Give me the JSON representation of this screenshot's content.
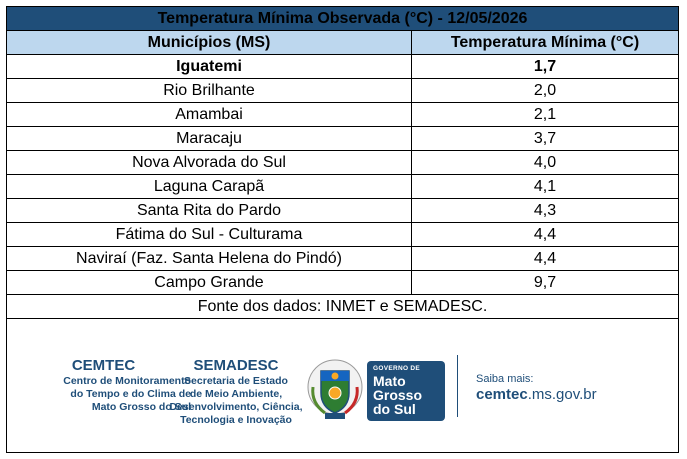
{
  "table": {
    "title": "Temperatura Mínima Observada (°C) - 12/05/2026",
    "col_municipio": "Municípios (MS)",
    "col_temperatura": "Temperatura Mínima (°C)",
    "rows": [
      {
        "municipio": "Iguatemi",
        "temperatura": "1,7"
      },
      {
        "municipio": "Rio Brilhante",
        "temperatura": "2,0"
      },
      {
        "municipio": "Amambai",
        "temperatura": "2,1"
      },
      {
        "municipio": "Maracaju",
        "temperatura": "3,7"
      },
      {
        "municipio": "Nova Alvorada do Sul",
        "temperatura": "4,0"
      },
      {
        "municipio": "Laguna Carapã",
        "temperatura": "4,1"
      },
      {
        "municipio": "Santa Rita do Pardo",
        "temperatura": "4,3"
      },
      {
        "municipio": "Fátima do Sul - Culturama",
        "temperatura": "4,4"
      },
      {
        "municipio": "Naviraí (Faz. Santa Helena do Pindó)",
        "temperatura": "4,4"
      },
      {
        "municipio": "Campo Grande",
        "temperatura": "9,7"
      }
    ],
    "source": "Fonte dos dados: INMET e SEMADESC."
  },
  "footer": {
    "cemtec": {
      "name": "CEMTEC",
      "line1": "Centro de Monitoramento",
      "line2": "do Tempo e do Clima de",
      "line3": "Mato Grosso do Sul"
    },
    "semadesc": {
      "name": "SEMADESC",
      "line1": "Secretaria de Estado",
      "line2": "de Meio Ambiente,",
      "line3": "Desenvolvimento, Ciência,",
      "line4": "Tecnologia e Inovação"
    },
    "governo": {
      "small": "GOVERNO DE",
      "line1": "Mato",
      "line2": "Grosso",
      "line3": "do Sul"
    },
    "site": {
      "label": "Saiba mais:",
      "url_bold": "cemtec",
      "url_rest": ".ms.gov.br"
    }
  },
  "colors": {
    "title_bg": "#1f4e79",
    "header_bg": "#bdd7ee",
    "highlight_text": "#1d1df0",
    "brand_blue": "#1f4e79"
  }
}
